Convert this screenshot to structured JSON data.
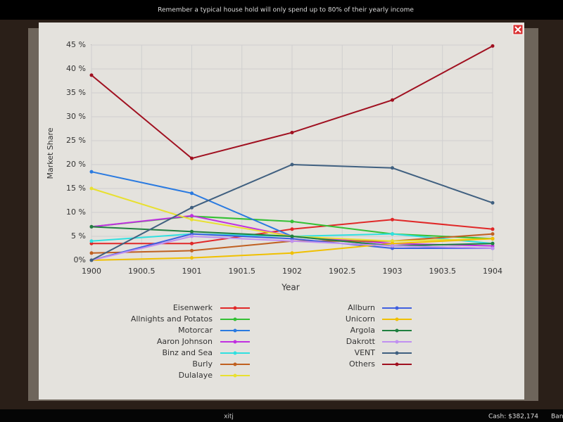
{
  "message": "Remember a typical house hold will only spend up to 80% of their yearly income",
  "status": {
    "label": "xitj",
    "cash": "Cash: $382,174",
    "bank": "Ban"
  },
  "chart_data": {
    "type": "line",
    "xlabel": "Year",
    "ylabel": "Market Share",
    "x": [
      1900,
      1901,
      1902,
      1903,
      1904
    ],
    "xlim": [
      1900,
      1904
    ],
    "xticks": [
      1900,
      1900.5,
      1901,
      1901.5,
      1902,
      1902.5,
      1903,
      1903.5,
      1904
    ],
    "ylim": [
      0,
      45
    ],
    "yticks": [
      {
        "value": 0,
        "label": "0%"
      },
      {
        "value": 5,
        "label": "5 %"
      },
      {
        "value": 10,
        "label": "10 %"
      },
      {
        "value": 15,
        "label": "15 %"
      },
      {
        "value": 20,
        "label": "20 %"
      },
      {
        "value": 25,
        "label": "25 %"
      },
      {
        "value": 30,
        "label": "30 %"
      },
      {
        "value": 35,
        "label": "35 %"
      },
      {
        "value": 40,
        "label": "40 %"
      },
      {
        "value": 45,
        "label": "45 %"
      }
    ],
    "grid": true,
    "series": [
      {
        "name": "Eisenwerk",
        "color": "#e02828",
        "values": [
          3.5,
          3.5,
          6.5,
          8.5,
          6.5
        ]
      },
      {
        "name": "Allnights and Potatos",
        "color": "#34c034",
        "values": [
          7,
          9.2,
          8.1,
          5.5,
          4.5
        ]
      },
      {
        "name": "Motorcar",
        "color": "#2a7ae0",
        "values": [
          18.5,
          14,
          5,
          3,
          2.5
        ]
      },
      {
        "name": "Aaron Johnson",
        "color": "#c030e0",
        "values": [
          7,
          9.3,
          5,
          3.5,
          3
        ]
      },
      {
        "name": "Binz and Sea",
        "color": "#30e0e0",
        "values": [
          4,
          5.5,
          5,
          5.5,
          3.5
        ]
      },
      {
        "name": "Burly",
        "color": "#c06020",
        "values": [
          1.5,
          2,
          4,
          4,
          5.5
        ]
      },
      {
        "name": "Dulalaye",
        "color": "#e8e030",
        "values": [
          15,
          8.5,
          5,
          4,
          4.5
        ]
      },
      {
        "name": "Allburn",
        "color": "#4060e0",
        "values": [
          0,
          5.5,
          4.5,
          2.5,
          2.5
        ]
      },
      {
        "name": "Unicorn",
        "color": "#f0c000",
        "values": [
          0,
          0.5,
          1.5,
          3.5,
          4.5
        ]
      },
      {
        "name": "Argola",
        "color": "#208040",
        "values": [
          7,
          6,
          5,
          3,
          3.5
        ]
      },
      {
        "name": "Dakrott",
        "color": "#c090f0",
        "values": [
          0,
          5,
          4,
          3,
          2.5
        ]
      },
      {
        "name": "VENT",
        "color": "#406080",
        "values": [
          0,
          11,
          20,
          19.3,
          12
        ]
      },
      {
        "name": "Others",
        "color": "#a01020",
        "values": [
          38.7,
          21.3,
          26.7,
          33.5,
          44.8
        ]
      }
    ]
  }
}
